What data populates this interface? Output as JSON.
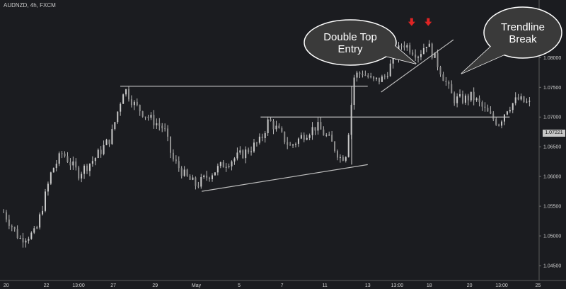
{
  "header": {
    "symbol": "AUDNZD, 4h, FXCM"
  },
  "current_price": "1.07221",
  "callouts": [
    {
      "id": "double-top",
      "lines": [
        "Double Top",
        "Entry"
      ]
    },
    {
      "id": "trendline-break",
      "lines": [
        "Trendline",
        "Break"
      ]
    }
  ],
  "colors": {
    "background": "#1b1c20",
    "candle": "#c9c9c9",
    "line": "#bdbdbd",
    "arrow": "#e02424",
    "callout_fill": "#3a3a3a",
    "callout_stroke": "#ffffff",
    "text": "#d0d0d0"
  },
  "chart_data": {
    "type": "line",
    "title": "",
    "xlabel": "",
    "ylabel": "",
    "ylim": [
      1.0425,
      1.0885
    ],
    "x_ticks": [
      "20",
      "22",
      "13:00",
      "27",
      "29",
      "May",
      "5",
      "7",
      "11",
      "13",
      "13:00",
      "18",
      "20",
      "13:00",
      "25"
    ],
    "y_ticks": [
      "1.04500",
      "1.05000",
      "1.05500",
      "1.06000",
      "1.06500",
      "1.07000",
      "1.07500",
      "1.08000",
      "1.08500"
    ],
    "price_path": [
      [
        0,
        1.054
      ],
      [
        0.03,
        1.0495
      ],
      [
        0.06,
        1.0505
      ],
      [
        0.09,
        1.061
      ],
      [
        0.11,
        1.064
      ],
      [
        0.14,
        1.0605
      ],
      [
        0.17,
        1.063
      ],
      [
        0.2,
        1.0665
      ],
      [
        0.225,
        1.075
      ],
      [
        0.245,
        1.072
      ],
      [
        0.27,
        1.07
      ],
      [
        0.3,
        1.068
      ],
      [
        0.315,
        1.063
      ],
      [
        0.34,
        1.06
      ],
      [
        0.36,
        1.0585
      ],
      [
        0.38,
        1.06
      ],
      [
        0.41,
        1.062
      ],
      [
        0.45,
        1.064
      ],
      [
        0.48,
        1.066
      ],
      [
        0.495,
        1.0695
      ],
      [
        0.51,
        1.068
      ],
      [
        0.535,
        1.065
      ],
      [
        0.56,
        1.067
      ],
      [
        0.585,
        1.0685
      ],
      [
        0.61,
        1.066
      ],
      [
        0.63,
        1.063
      ],
      [
        0.64,
        1.064
      ],
      [
        0.655,
        1.077
      ],
      [
        0.67,
        1.0775
      ],
      [
        0.69,
        1.076
      ],
      [
        0.71,
        1.0765
      ],
      [
        0.73,
        1.08
      ],
      [
        0.745,
        1.0825
      ],
      [
        0.76,
        1.0815
      ],
      [
        0.775,
        1.0805
      ],
      [
        0.79,
        1.0825
      ],
      [
        0.805,
        1.08
      ],
      [
        0.82,
        1.077
      ],
      [
        0.84,
        1.073
      ],
      [
        0.86,
        1.073
      ],
      [
        0.875,
        1.0735
      ],
      [
        0.89,
        1.072
      ],
      [
        0.91,
        1.07
      ],
      [
        0.925,
        1.069
      ],
      [
        0.94,
        1.0715
      ],
      [
        0.96,
        1.073
      ],
      [
        0.98,
        1.0722
      ]
    ],
    "lines": [
      {
        "id": "upper-resistance",
        "from": [
          0.218,
          1.0752
        ],
        "to": [
          0.68,
          1.0752
        ]
      },
      {
        "id": "mid-resistance",
        "from": [
          0.48,
          1.07
        ],
        "to": [
          0.945,
          1.07
        ]
      },
      {
        "id": "rising-support",
        "from": [
          0.37,
          1.0575
        ],
        "to": [
          0.68,
          1.062
        ]
      },
      {
        "id": "target-projection",
        "from": [
          0.65,
          1.062
        ],
        "to": [
          0.65,
          1.0752
        ]
      },
      {
        "id": "double-top-trendline",
        "from": [
          0.705,
          1.0742
        ],
        "to": [
          0.84,
          1.083
        ]
      }
    ],
    "arrows": [
      {
        "id": "arrow-left",
        "x": 0.762,
        "y": 1.0858
      },
      {
        "id": "arrow-right",
        "x": 0.793,
        "y": 1.0858
      }
    ]
  }
}
